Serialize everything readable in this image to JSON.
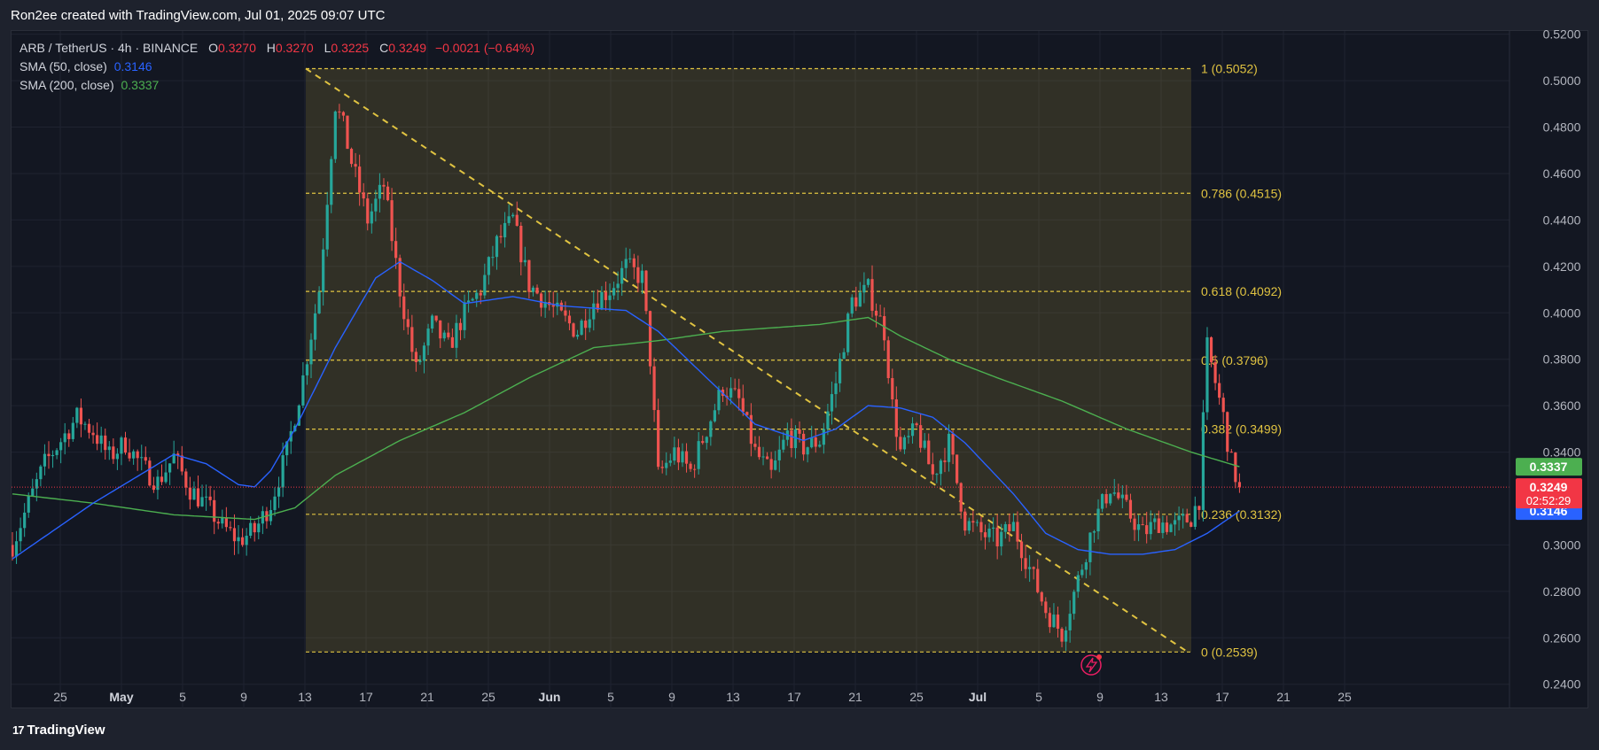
{
  "header": {
    "attribution": "Ron2ee created with TradingView.com, Jul 01, 2025 09:07 UTC"
  },
  "legend": {
    "symbol": "ARB / TetherUS · 4h · BINANCE",
    "o_label": "O",
    "o_value": "0.3270",
    "h_label": "H",
    "h_value": "0.3270",
    "l_label": "L",
    "l_value": "0.3225",
    "c_label": "C",
    "c_value": "0.3249",
    "change": "−0.0021 (−0.64%)",
    "sma50_label": "SMA (50, close)",
    "sma50_value": "0.3146",
    "sma200_label": "SMA (200, close)",
    "sma200_value": "0.3337"
  },
  "footer": {
    "brand": "TradingView",
    "brand_mark": "17"
  },
  "colors": {
    "bg": "#131722",
    "up": "#26a69a",
    "down": "#ef5350",
    "sma50": "#2962ff",
    "sma200": "#4caf50",
    "fib": "#e0c341"
  },
  "chart_data": {
    "type": "candlestick",
    "y_scale": "linear",
    "ylim": [
      0.2296,
      0.5214
    ],
    "grid": true,
    "y_ticks": [
      "0.5200",
      "0.5000",
      "0.4800",
      "0.4600",
      "0.4400",
      "0.4200",
      "0.4000",
      "0.3800",
      "0.3600",
      "0.3400",
      "0.3000",
      "0.2800",
      "0.2600",
      "0.2400"
    ],
    "x_ticks": [
      "25",
      "May",
      "5",
      "9",
      "13",
      "17",
      "21",
      "25",
      "Jun",
      "5",
      "9",
      "13",
      "17",
      "21",
      "25",
      "Jul",
      "5",
      "9",
      "13",
      "17",
      "21",
      "25"
    ],
    "fib_levels": [
      {
        "ratio": "1",
        "value": 0.5052,
        "label": "1 (0.5052)"
      },
      {
        "ratio": "0.786",
        "value": 0.4515,
        "label": "0.786 (0.4515)"
      },
      {
        "ratio": "0.618",
        "value": 0.4092,
        "label": "0.618 (0.4092)"
      },
      {
        "ratio": "0.5",
        "value": 0.3796,
        "label": "0.5 (0.3796)"
      },
      {
        "ratio": "0.382",
        "value": 0.3499,
        "label": "0.382 (0.3499)"
      },
      {
        "ratio": "0.236",
        "value": 0.3132,
        "label": "0.236 (0.3132)"
      },
      {
        "ratio": "0",
        "value": 0.2539,
        "label": "0 (0.2539)"
      }
    ],
    "trendline": {
      "from_price": 0.5052,
      "to_price": 0.2539
    },
    "last_price": {
      "value": 0.3249,
      "label": "0.3249",
      "countdown": "02:52:29"
    },
    "sma200_tag": {
      "value": 0.3337,
      "label": "0.3337"
    },
    "sma50_tag": {
      "value": 0.3146,
      "label": "0.3146"
    },
    "price_path": [
      [
        0,
        0.3
      ],
      [
        4,
        0.318
      ],
      [
        8,
        0.335
      ],
      [
        12,
        0.345
      ],
      [
        16,
        0.355
      ],
      [
        20,
        0.349
      ],
      [
        24,
        0.338
      ],
      [
        28,
        0.344
      ],
      [
        32,
        0.334
      ],
      [
        36,
        0.327
      ],
      [
        40,
        0.338
      ],
      [
        44,
        0.324
      ],
      [
        48,
        0.317
      ],
      [
        52,
        0.308
      ],
      [
        56,
        0.302
      ],
      [
        60,
        0.306
      ],
      [
        64,
        0.318
      ],
      [
        68,
        0.34
      ],
      [
        72,
        0.372
      ],
      [
        76,
        0.41
      ],
      [
        80,
        0.49
      ],
      [
        82,
        0.48
      ],
      [
        84,
        0.465
      ],
      [
        88,
        0.44
      ],
      [
        92,
        0.455
      ],
      [
        96,
        0.41
      ],
      [
        100,
        0.375
      ],
      [
        104,
        0.395
      ],
      [
        108,
        0.385
      ],
      [
        112,
        0.4
      ],
      [
        116,
        0.41
      ],
      [
        120,
        0.43
      ],
      [
        124,
        0.44
      ],
      [
        128,
        0.412
      ],
      [
        132,
        0.405
      ],
      [
        136,
        0.398
      ],
      [
        140,
        0.392
      ],
      [
        144,
        0.405
      ],
      [
        148,
        0.41
      ],
      [
        152,
        0.42
      ],
      [
        156,
        0.415
      ],
      [
        158,
        0.38
      ],
      [
        160,
        0.33
      ],
      [
        164,
        0.34
      ],
      [
        168,
        0.332
      ],
      [
        172,
        0.35
      ],
      [
        176,
        0.368
      ],
      [
        180,
        0.362
      ],
      [
        184,
        0.34
      ],
      [
        188,
        0.33
      ],
      [
        192,
        0.348
      ],
      [
        196,
        0.342
      ],
      [
        200,
        0.345
      ],
      [
        204,
        0.37
      ],
      [
        208,
        0.405
      ],
      [
        212,
        0.41
      ],
      [
        216,
        0.392
      ],
      [
        218,
        0.36
      ],
      [
        220,
        0.34
      ],
      [
        224,
        0.35
      ],
      [
        228,
        0.33
      ],
      [
        232,
        0.344
      ],
      [
        236,
        0.31
      ],
      [
        240,
        0.305
      ],
      [
        244,
        0.302
      ],
      [
        248,
        0.308
      ],
      [
        252,
        0.29
      ],
      [
        256,
        0.272
      ],
      [
        260,
        0.262
      ],
      [
        264,
        0.285
      ],
      [
        268,
        0.31
      ],
      [
        272,
        0.325
      ],
      [
        276,
        0.315
      ],
      [
        280,
        0.305
      ],
      [
        284,
        0.31
      ],
      [
        288,
        0.308
      ],
      [
        292,
        0.312
      ],
      [
        294,
        0.32
      ],
      [
        296,
        0.385
      ],
      [
        298,
        0.37
      ],
      [
        300,
        0.355
      ],
      [
        302,
        0.335
      ],
      [
        304,
        0.3249
      ]
    ],
    "sma50_path": [
      [
        0,
        0.294
      ],
      [
        20,
        0.318
      ],
      [
        40,
        0.339
      ],
      [
        48,
        0.335
      ],
      [
        56,
        0.326
      ],
      [
        60,
        0.325
      ],
      [
        64,
        0.332
      ],
      [
        70,
        0.35
      ],
      [
        80,
        0.385
      ],
      [
        90,
        0.415
      ],
      [
        96,
        0.422
      ],
      [
        104,
        0.414
      ],
      [
        112,
        0.404
      ],
      [
        124,
        0.407
      ],
      [
        136,
        0.403
      ],
      [
        152,
        0.401
      ],
      [
        160,
        0.392
      ],
      [
        172,
        0.372
      ],
      [
        184,
        0.352
      ],
      [
        196,
        0.345
      ],
      [
        204,
        0.35
      ],
      [
        212,
        0.36
      ],
      [
        220,
        0.359
      ],
      [
        228,
        0.355
      ],
      [
        236,
        0.344
      ],
      [
        248,
        0.322
      ],
      [
        256,
        0.305
      ],
      [
        264,
        0.298
      ],
      [
        272,
        0.296
      ],
      [
        280,
        0.296
      ],
      [
        288,
        0.298
      ],
      [
        296,
        0.305
      ],
      [
        304,
        0.3146
      ]
    ],
    "sma200_path": [
      [
        0,
        0.322
      ],
      [
        20,
        0.318
      ],
      [
        40,
        0.313
      ],
      [
        60,
        0.311
      ],
      [
        70,
        0.316
      ],
      [
        80,
        0.33
      ],
      [
        96,
        0.345
      ],
      [
        112,
        0.357
      ],
      [
        128,
        0.372
      ],
      [
        144,
        0.385
      ],
      [
        160,
        0.388
      ],
      [
        176,
        0.392
      ],
      [
        200,
        0.395
      ],
      [
        212,
        0.398
      ],
      [
        220,
        0.39
      ],
      [
        232,
        0.38
      ],
      [
        244,
        0.372
      ],
      [
        260,
        0.362
      ],
      [
        276,
        0.35
      ],
      [
        292,
        0.34
      ],
      [
        304,
        0.3337
      ]
    ]
  }
}
